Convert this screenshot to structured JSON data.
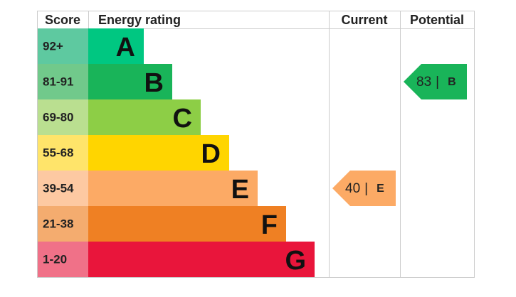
{
  "headers": {
    "score": "Score",
    "rating": "Energy rating",
    "current": "Current",
    "potential": "Potential"
  },
  "bands": [
    {
      "score": "92+",
      "letter": "A",
      "color": "#00c781",
      "light": "#5ec9a0"
    },
    {
      "score": "81-91",
      "letter": "B",
      "color": "#19b459",
      "light": "#71c98b"
    },
    {
      "score": "69-80",
      "letter": "C",
      "color": "#8dce46",
      "light": "#badf90"
    },
    {
      "score": "55-68",
      "letter": "D",
      "color": "#ffd500",
      "light": "#ffe46a"
    },
    {
      "score": "39-54",
      "letter": "E",
      "color": "#fcaa65",
      "light": "#fdc9a2"
    },
    {
      "score": "21-38",
      "letter": "F",
      "color": "#ef8023",
      "light": "#f4ac6f"
    },
    {
      "score": "1-20",
      "letter": "G",
      "color": "#e9153b",
      "light": "#f07188"
    }
  ],
  "current": {
    "value": 40,
    "separator": "|",
    "rating": "E"
  },
  "potential": {
    "value": 83,
    "separator": "|",
    "rating": "B"
  }
}
